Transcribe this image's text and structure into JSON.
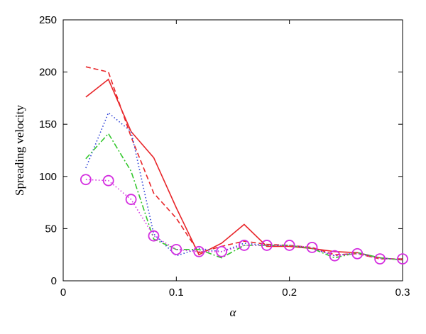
{
  "chart_data": {
    "type": "line",
    "xlabel": "α",
    "ylabel": "Spreading velocity",
    "xlim": [
      0,
      0.3
    ],
    "ylim": [
      0,
      250
    ],
    "xticks": [
      0,
      0.1,
      0.2,
      0.3
    ],
    "xtick_labels": [
      "0",
      "0.1",
      "0.2",
      "0.3"
    ],
    "yticks": [
      0,
      50,
      100,
      150,
      200,
      250
    ],
    "ytick_labels": [
      "0",
      "50",
      "100",
      "150",
      "200",
      "250"
    ],
    "grid": false,
    "legend": "none",
    "series": [
      {
        "style": "solid",
        "color": "#e8262a",
        "marker": "none",
        "x": [
          0.02,
          0.04,
          0.06,
          0.08,
          0.1,
          0.12,
          0.14,
          0.16,
          0.18,
          0.2,
          0.22,
          0.24,
          0.26,
          0.28,
          0.3
        ],
        "y": [
          176,
          193,
          143,
          118,
          70,
          25,
          36,
          54,
          33,
          33,
          31,
          28,
          27,
          22,
          20
        ]
      },
      {
        "style": "dashed",
        "color": "#e8262a",
        "marker": "none",
        "x": [
          0.02,
          0.04,
          0.06,
          0.08,
          0.1,
          0.12,
          0.14,
          0.16,
          0.18,
          0.2,
          0.22,
          0.24,
          0.26,
          0.28,
          0.3
        ],
        "y": [
          205,
          200,
          138,
          84,
          60,
          27,
          33,
          38,
          35,
          34,
          32,
          25,
          26,
          21,
          21
        ]
      },
      {
        "style": "dotted",
        "color": "#2b3fd6",
        "marker": "none",
        "x": [
          0.02,
          0.04,
          0.06,
          0.08,
          0.1,
          0.12,
          0.14,
          0.16,
          0.18,
          0.2,
          0.22,
          0.24,
          0.26,
          0.28,
          0.3
        ],
        "y": [
          108,
          161,
          143,
          45,
          24,
          31,
          28,
          36,
          34,
          34,
          31,
          24,
          27,
          22,
          20
        ]
      },
      {
        "style": "dashdot",
        "color": "#35c82e",
        "marker": "none",
        "x": [
          0.02,
          0.04,
          0.06,
          0.08,
          0.1,
          0.12,
          0.14,
          0.16,
          0.18,
          0.2,
          0.22,
          0.24,
          0.26,
          0.28,
          0.3
        ],
        "y": [
          117,
          141,
          105,
          40,
          30,
          30,
          22,
          34,
          34,
          34,
          31,
          22,
          27,
          22,
          20
        ]
      },
      {
        "style": "dotted",
        "color": "#d42ee0",
        "marker": "circle",
        "x": [
          0.02,
          0.04,
          0.06,
          0.08,
          0.1,
          0.12,
          0.14,
          0.16,
          0.18,
          0.2,
          0.22,
          0.24,
          0.26,
          0.28,
          0.3
        ],
        "y": [
          97,
          96,
          78,
          43,
          30,
          28,
          28,
          34,
          34,
          34,
          32,
          24,
          26,
          21,
          21
        ]
      }
    ]
  }
}
